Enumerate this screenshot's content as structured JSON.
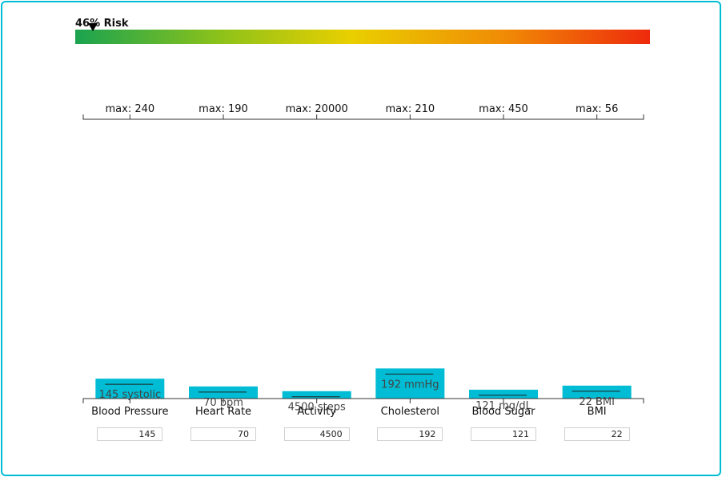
{
  "risk": {
    "percent": 46,
    "label": "46% Risk"
  },
  "colors": {
    "bar": "#00bcd4",
    "axis": "#333333",
    "frame": "#00bcd4",
    "gradient": [
      "#1aa350",
      "#8cc21a",
      "#e9cf00",
      "#f08a05",
      "#ee2a0c"
    ]
  },
  "chart_data": {
    "type": "bar",
    "categories": [
      "Blood Pressure",
      "Heart Rate",
      "Activity",
      "Cholesterol",
      "Blood Sugar",
      "BMI"
    ],
    "values": [
      145,
      70,
      4500,
      192,
      121,
      22
    ],
    "max": [
      240,
      190,
      20000,
      210,
      450,
      56
    ],
    "max_labels": [
      "max: 240",
      "max: 190",
      "max: 20000",
      "max: 210",
      "max: 450",
      "max: 56"
    ],
    "value_labels": [
      "145 systolic",
      "70 bpm",
      "4500 steps",
      "192 mmHg",
      "121 mg/dL",
      "22 BMI"
    ],
    "title": "",
    "xlabel": "",
    "ylabel": ""
  },
  "inputs": [
    "145",
    "70",
    "4500",
    "192",
    "121",
    "22"
  ]
}
